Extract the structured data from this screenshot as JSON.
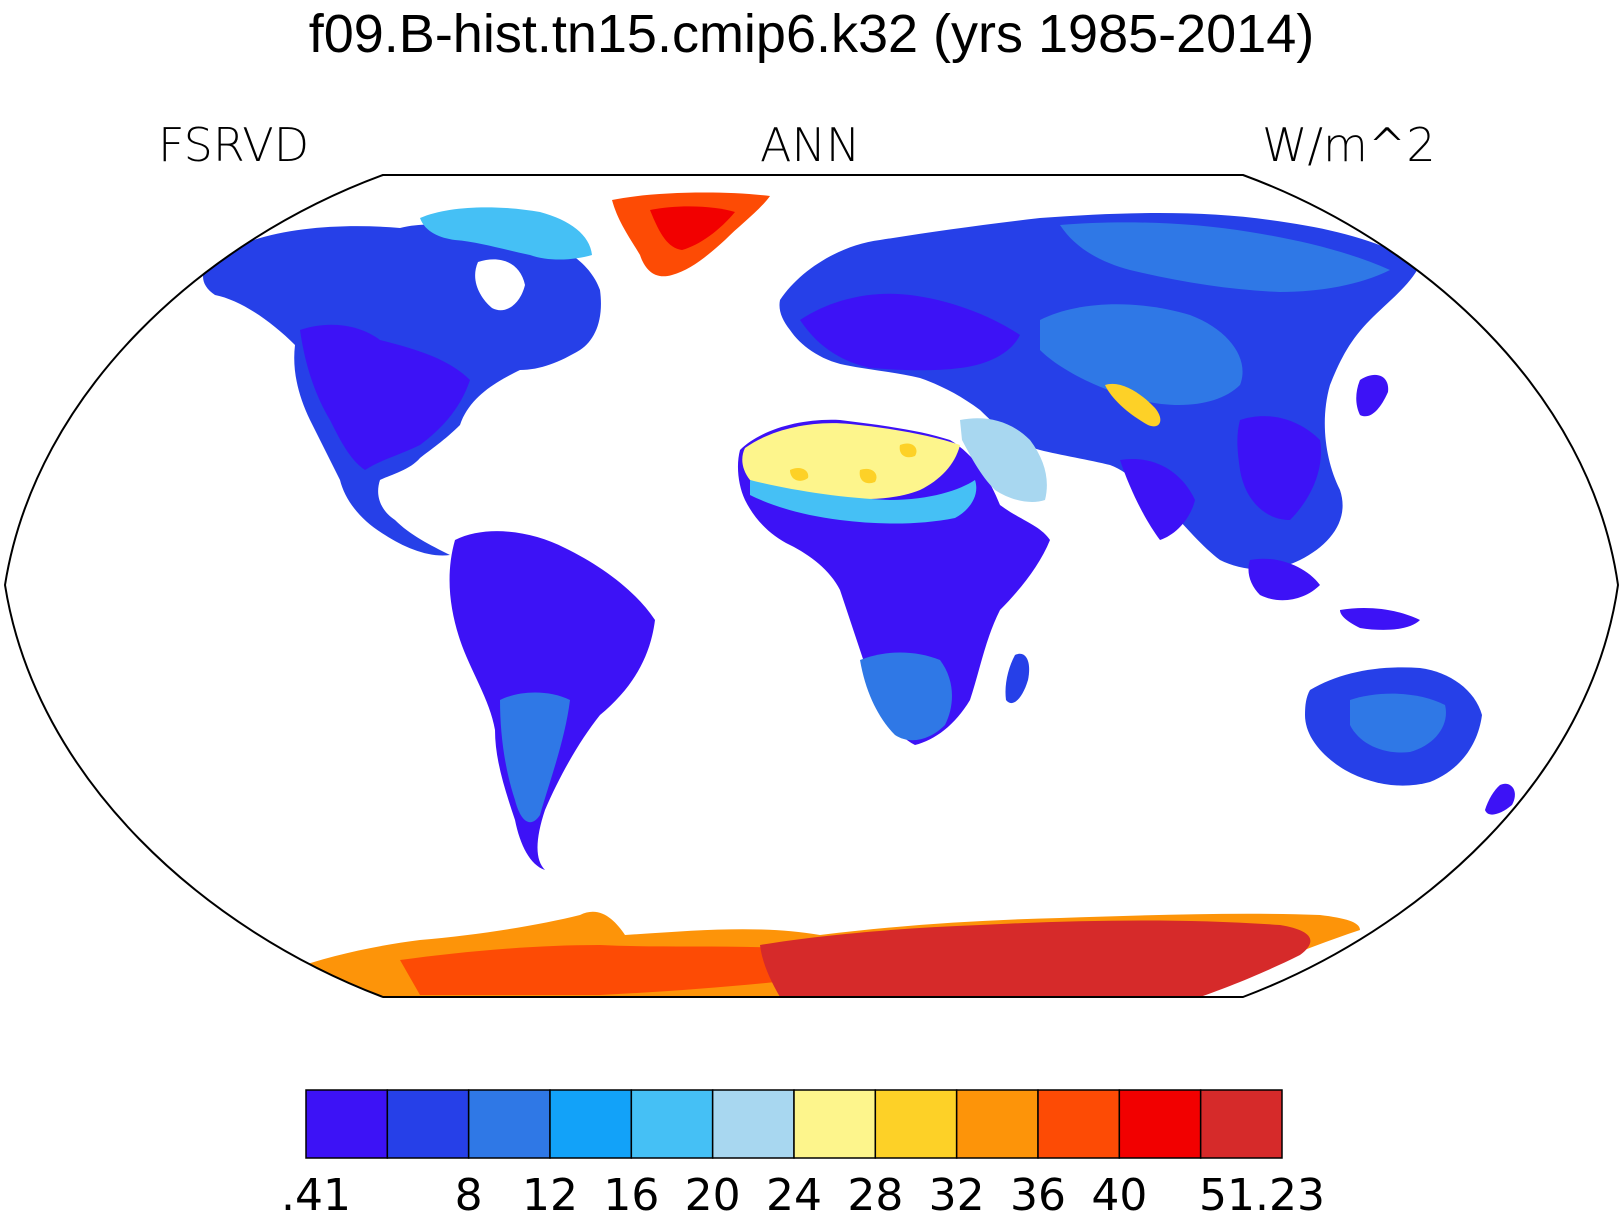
{
  "title": "f09.B-hist.tn15.cmip6.k32 (yrs 1985-2014)",
  "variable": "FSRVD",
  "season": "ANN",
  "units": "W/m^2",
  "colorbar": {
    "colors": [
      "#3d12f6",
      "#2640e8",
      "#2f78e6",
      "#12a2f9",
      "#45c0f5",
      "#a8d7f0",
      "#fdf58c",
      "#fdd127",
      "#fd9409",
      "#fd4b05",
      "#f20000",
      "#d62a2a"
    ],
    "labels": [
      ".41",
      "8",
      "12",
      "16",
      "20",
      "24",
      "28",
      "32",
      "36",
      "40",
      "51.23"
    ]
  },
  "map": {
    "projection": "Robinson",
    "colors": {
      "land_low": "#3d12f6",
      "land_mid": "#2640e8",
      "land_med": "#2f78e6",
      "desert_light": "#a8d7f0",
      "desert_yellow": "#fdf58c",
      "ice_orange": "#fd9409",
      "ice_red": "#f20000",
      "ice_max": "#d62a2a"
    }
  }
}
